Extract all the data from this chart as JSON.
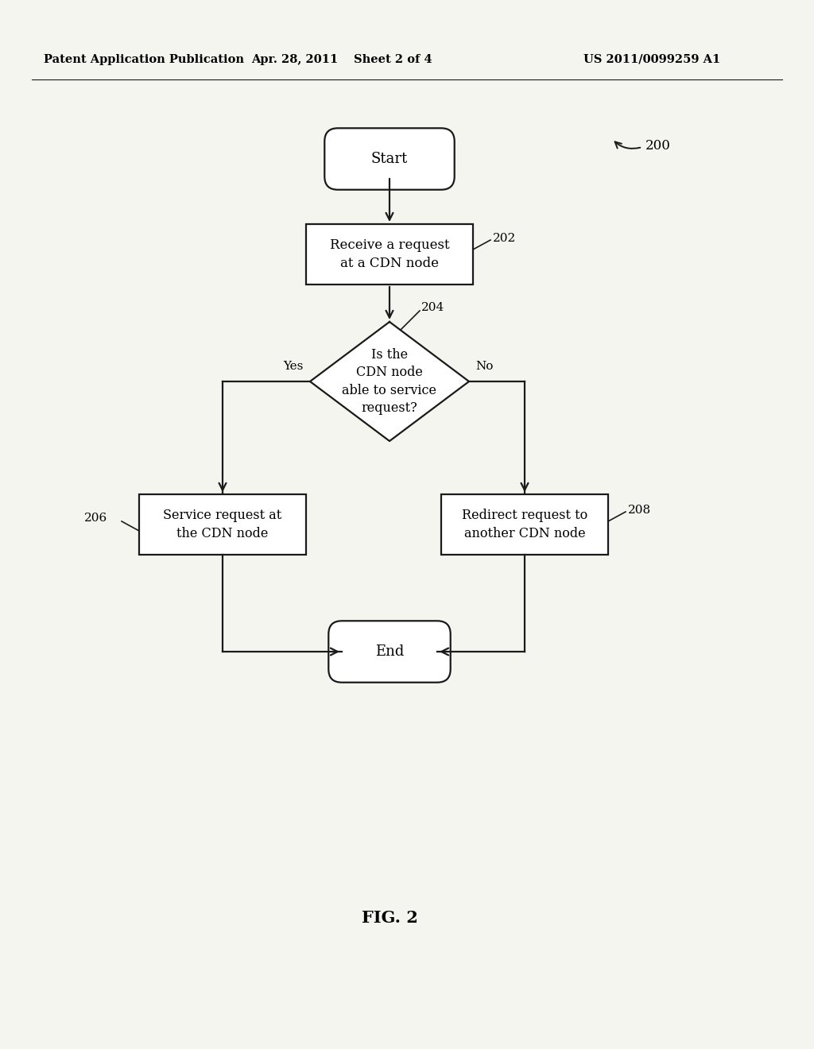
{
  "bg_color": "#f5f5f0",
  "header_left": "Patent Application Publication",
  "header_mid": "Apr. 28, 2011  Sheet 2 of 4",
  "header_right": "US 2011/0099259 A1",
  "fig_label": "FIG. 2",
  "diagram_label": "200",
  "start_text": "Start",
  "receive_text": "Receive a request\nat a CDN node",
  "receive_label": "202",
  "decision_text": "Is the\nCDN node\nable to service\nrequest?",
  "decision_label": "204",
  "service_text": "Service request at\nthe CDN node",
  "service_label": "206",
  "redirect_text": "Redirect request to\nanother CDN node",
  "redirect_label": "208",
  "end_text": "End",
  "yes_text": "Yes",
  "no_text": "No"
}
